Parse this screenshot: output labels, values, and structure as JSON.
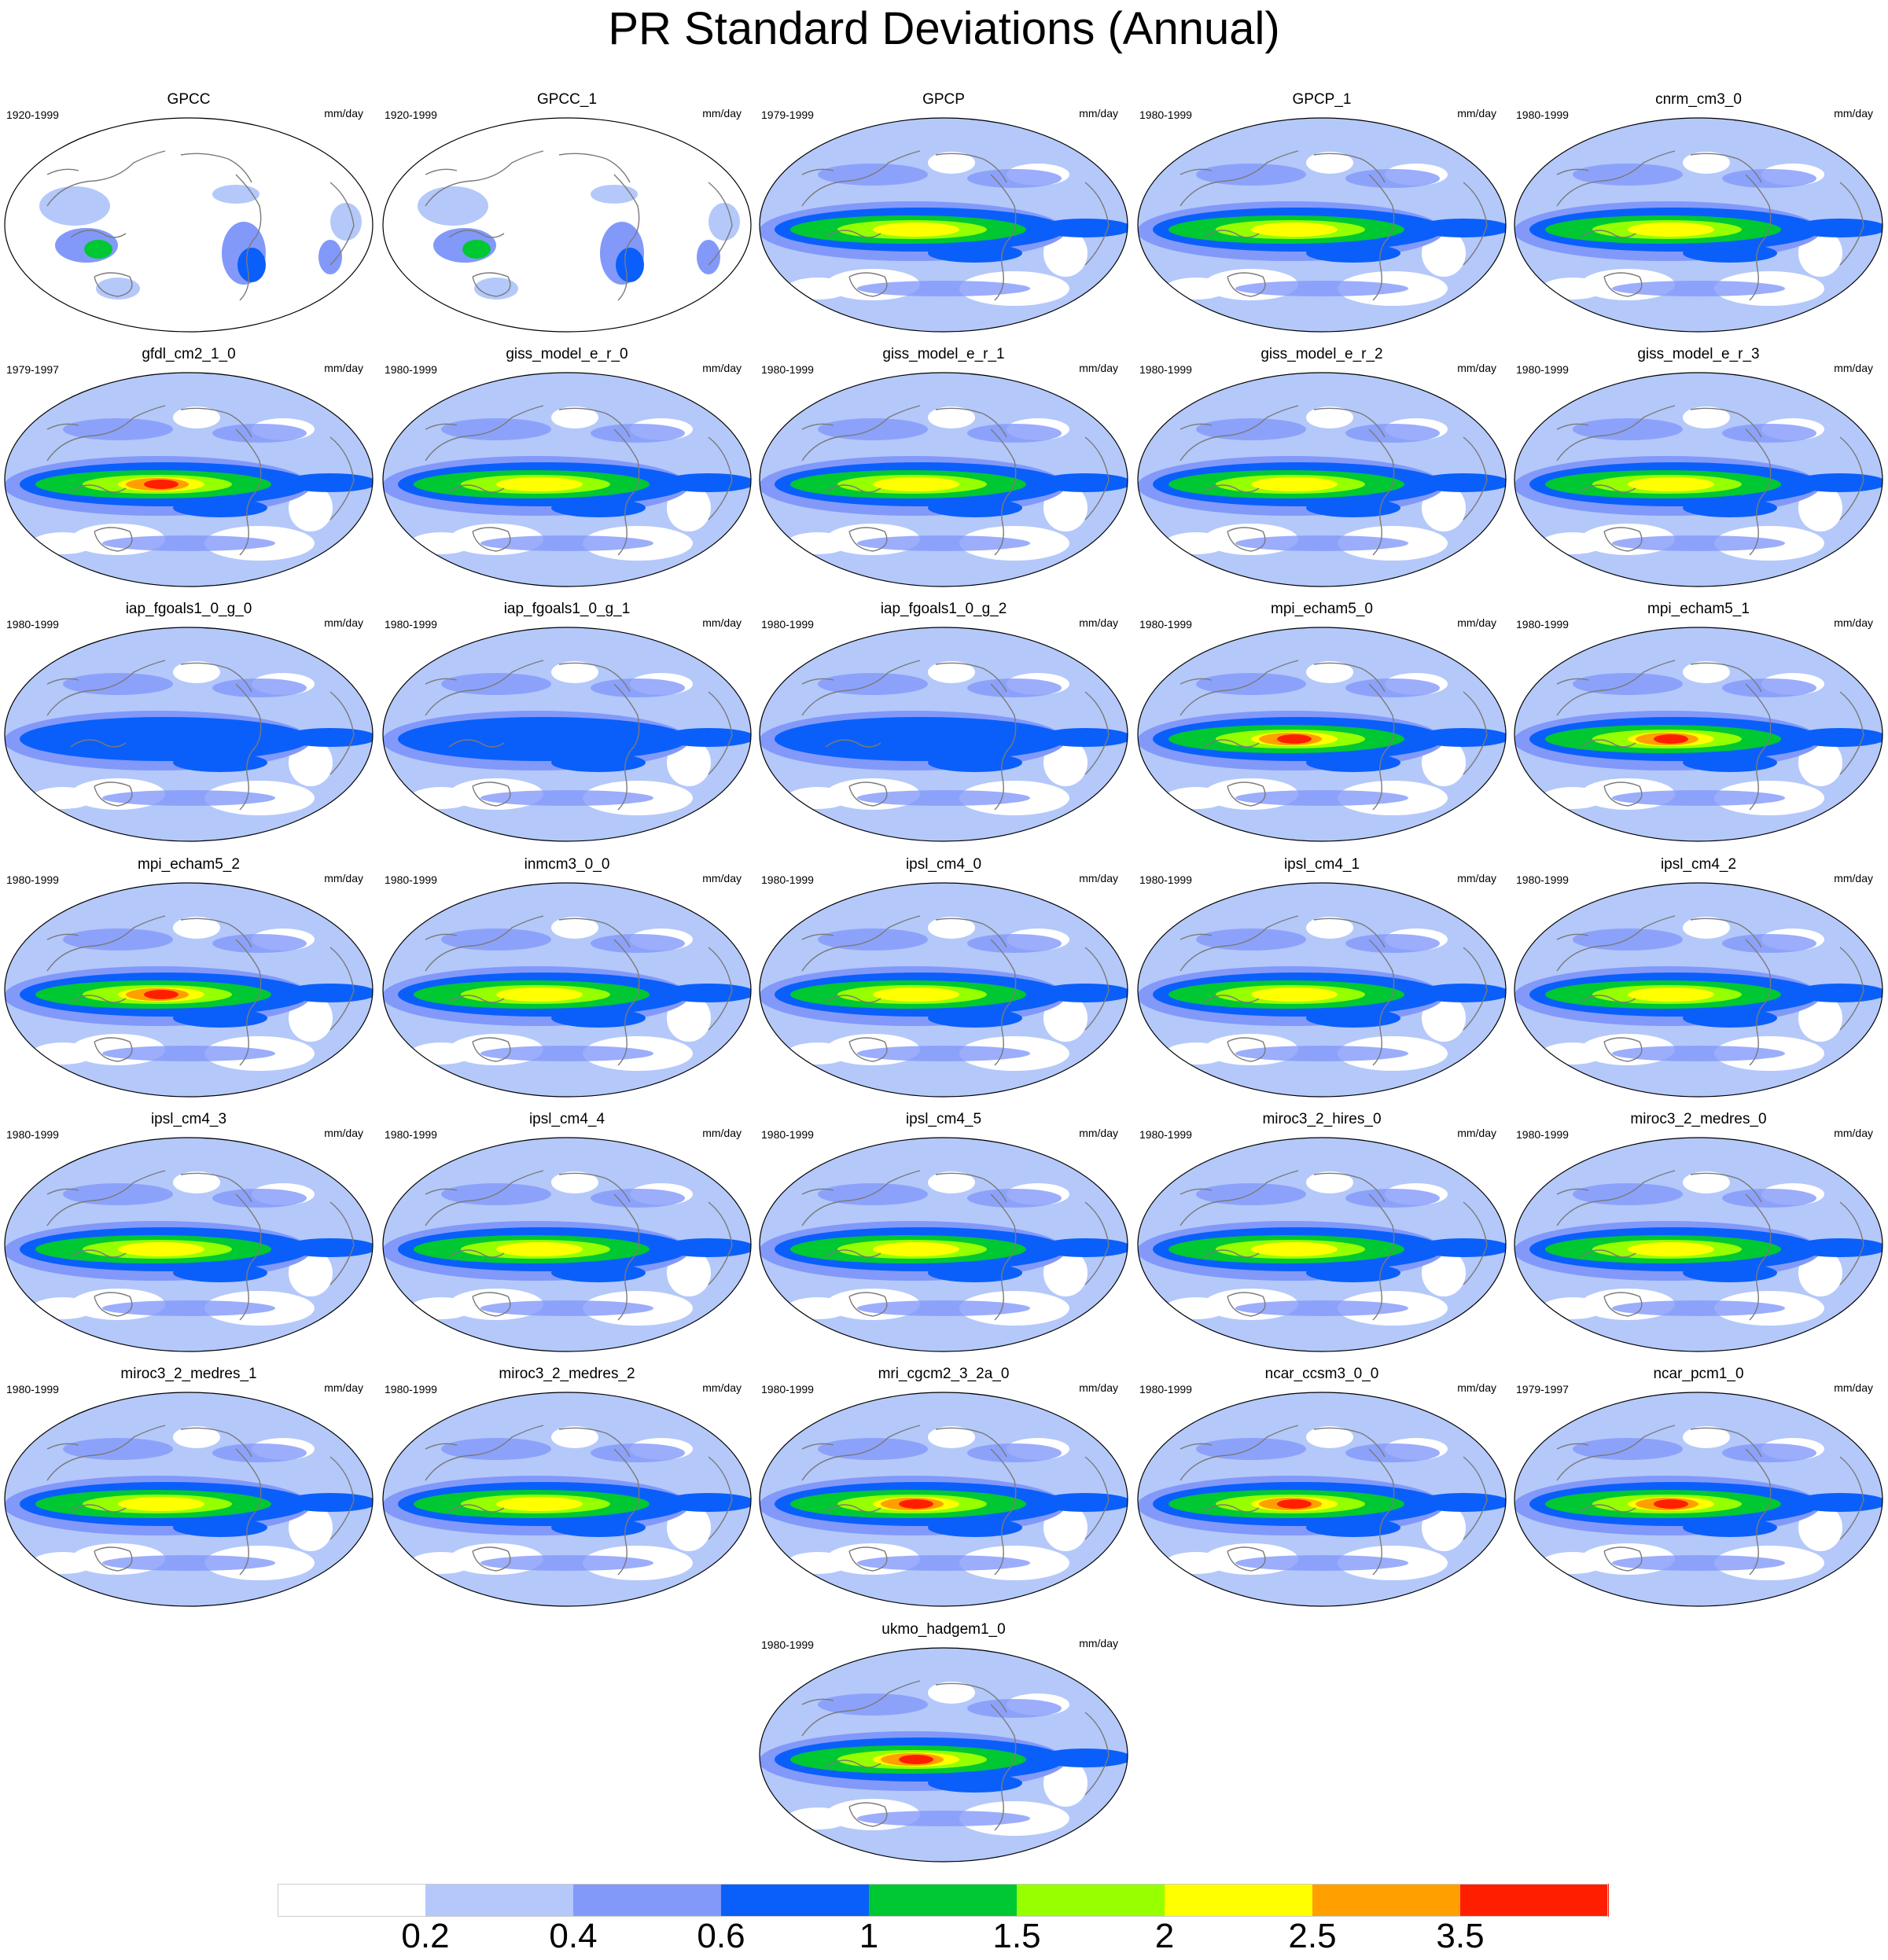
{
  "title": "PR Standard Deviations (Annual)",
  "units": "mm/day",
  "panels": [
    {
      "name": "GPCC",
      "period": "1920-1999",
      "variant": "land"
    },
    {
      "name": "GPCC_1",
      "period": "1920-1999",
      "variant": "land"
    },
    {
      "name": "GPCP",
      "period": "1979-1999",
      "variant": "obs"
    },
    {
      "name": "GPCP_1",
      "period": "1980-1999",
      "variant": "obs"
    },
    {
      "name": "cnrm_cm3_0",
      "period": "1980-1999",
      "variant": "mid"
    },
    {
      "name": "gfdl_cm2_1_0",
      "period": "1979-1997",
      "variant": "high"
    },
    {
      "name": "giss_model_e_r_0",
      "period": "1980-1999",
      "variant": "mid"
    },
    {
      "name": "giss_model_e_r_1",
      "period": "1980-1999",
      "variant": "mid"
    },
    {
      "name": "giss_model_e_r_2",
      "period": "1980-1999",
      "variant": "mid"
    },
    {
      "name": "giss_model_e_r_3",
      "period": "1980-1999",
      "variant": "mid"
    },
    {
      "name": "iap_fgoals1_0_g_0",
      "period": "1980-1999",
      "variant": "low"
    },
    {
      "name": "iap_fgoals1_0_g_1",
      "period": "1980-1999",
      "variant": "low"
    },
    {
      "name": "iap_fgoals1_0_g_2",
      "period": "1980-1999",
      "variant": "low"
    },
    {
      "name": "mpi_echam5_0",
      "period": "1980-1999",
      "variant": "high"
    },
    {
      "name": "mpi_echam5_1",
      "period": "1980-1999",
      "variant": "high"
    },
    {
      "name": "mpi_echam5_2",
      "period": "1980-1999",
      "variant": "high"
    },
    {
      "name": "inmcm3_0_0",
      "period": "1980-1999",
      "variant": "mid"
    },
    {
      "name": "ipsl_cm4_0",
      "period": "1980-1999",
      "variant": "mid"
    },
    {
      "name": "ipsl_cm4_1",
      "period": "1980-1999",
      "variant": "mid"
    },
    {
      "name": "ipsl_cm4_2",
      "period": "1980-1999",
      "variant": "mid"
    },
    {
      "name": "ipsl_cm4_3",
      "period": "1980-1999",
      "variant": "mid"
    },
    {
      "name": "ipsl_cm4_4",
      "period": "1980-1999",
      "variant": "mid"
    },
    {
      "name": "ipsl_cm4_5",
      "period": "1980-1999",
      "variant": "mid"
    },
    {
      "name": "miroc3_2_hires_0",
      "period": "1980-1999",
      "variant": "obs"
    },
    {
      "name": "miroc3_2_medres_0",
      "period": "1980-1999",
      "variant": "mid"
    },
    {
      "name": "miroc3_2_medres_1",
      "period": "1980-1999",
      "variant": "mid"
    },
    {
      "name": "miroc3_2_medres_2",
      "period": "1980-1999",
      "variant": "mid"
    },
    {
      "name": "mri_cgcm2_3_2a_0",
      "period": "1980-1999",
      "variant": "high"
    },
    {
      "name": "ncar_ccsm3_0_0",
      "period": "1980-1999",
      "variant": "high"
    },
    {
      "name": "ncar_pcm1_0",
      "period": "1979-1997",
      "variant": "high"
    },
    {
      "name": "ukmo_hadgem1_0",
      "period": "1980-1999",
      "variant": "high"
    }
  ],
  "colorbar": {
    "colors": [
      "#ffffff",
      "#b4c8fa",
      "#8299fa",
      "#0a5ffa",
      "#00c832",
      "#96ff00",
      "#ffff00",
      "#ffa000",
      "#ff1e00"
    ],
    "labels": [
      "0.2",
      "0.4",
      "0.6",
      "1",
      "1.5",
      "2",
      "2.5",
      "3.5"
    ]
  }
}
